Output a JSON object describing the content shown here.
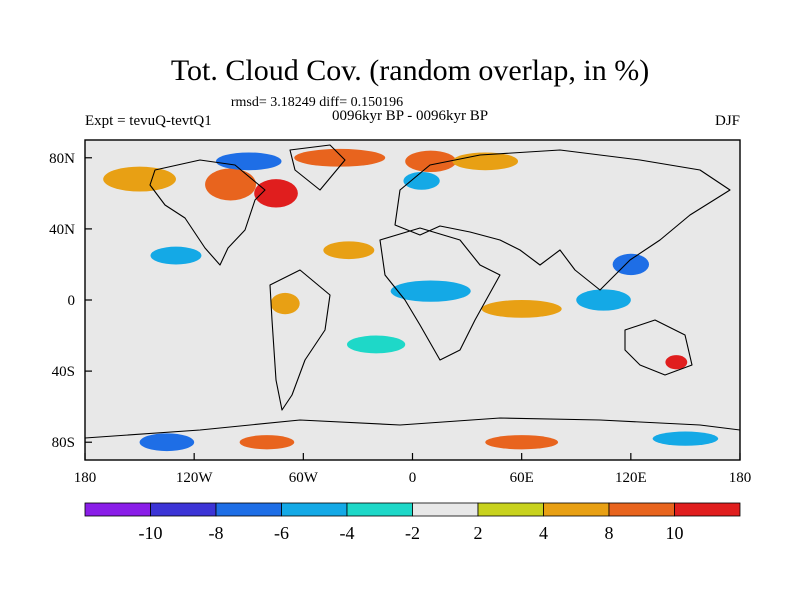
{
  "chart_data": {
    "type": "heatmap",
    "title": "Tot. Cloud Cov. (random overlap, in %)",
    "stats_label": "rmsd= 3.18249 diff= 0.150196",
    "experiment_label": "Expt = tevuQ-tevtQ1",
    "period_label": "0096kyr BP - 0096kyr BP",
    "season_label": "DJF",
    "units": "%",
    "x_range": [
      -180,
      180
    ],
    "y_range": [
      -90,
      90
    ],
    "x_ticks": [
      {
        "value": -180,
        "label": "180"
      },
      {
        "value": -120,
        "label": "120W"
      },
      {
        "value": -60,
        "label": "60W"
      },
      {
        "value": 0,
        "label": "0"
      },
      {
        "value": 60,
        "label": "60E"
      },
      {
        "value": 120,
        "label": "120E"
      },
      {
        "value": 180,
        "label": "180"
      }
    ],
    "y_ticks": [
      {
        "value": 80,
        "label": "80N"
      },
      {
        "value": 40,
        "label": "40N"
      },
      {
        "value": 0,
        "label": "0"
      },
      {
        "value": -40,
        "label": "40S"
      },
      {
        "value": -80,
        "label": "80S"
      }
    ],
    "levels": [
      -10,
      -8,
      -6,
      -4,
      -2,
      2,
      4,
      8,
      10
    ],
    "level_labels": [
      "-10",
      "-8",
      "-6",
      "-4",
      "-2",
      "2",
      "4",
      "8",
      "10"
    ],
    "palette": [
      "#8a1ee8",
      "#3c34d6",
      "#1e6ee6",
      "#14a9e6",
      "#1ed8c8",
      "#e8e8e8",
      "#c8d21e",
      "#e8a014",
      "#e8641e",
      "#e01e1e"
    ],
    "anomaly_regions": [
      {
        "lon": -100,
        "lat": 65,
        "rlon": 14,
        "rlat": 9,
        "value": 9
      },
      {
        "lon": -75,
        "lat": 60,
        "rlon": 12,
        "rlat": 8,
        "value": 11
      },
      {
        "lon": -150,
        "lat": 68,
        "rlon": 20,
        "rlat": 7,
        "value": 6
      },
      {
        "lon": -90,
        "lat": 78,
        "rlon": 18,
        "rlat": 5,
        "value": -7
      },
      {
        "lon": -40,
        "lat": 80,
        "rlon": 25,
        "rlat": 5,
        "value": 9
      },
      {
        "lon": 10,
        "lat": 78,
        "rlon": 14,
        "rlat": 6,
        "value": 9
      },
      {
        "lon": 40,
        "lat": 78,
        "rlon": 18,
        "rlat": 5,
        "value": 7
      },
      {
        "lon": 5,
        "lat": 67,
        "rlon": 10,
        "rlat": 5,
        "value": -6
      },
      {
        "lon": -35,
        "lat": 28,
        "rlon": 14,
        "rlat": 5,
        "value": 5
      },
      {
        "lon": -130,
        "lat": 25,
        "rlon": 14,
        "rlat": 5,
        "value": -5
      },
      {
        "lon": 10,
        "lat": 5,
        "rlon": 22,
        "rlat": 6,
        "value": -6
      },
      {
        "lon": 60,
        "lat": -5,
        "rlon": 22,
        "rlat": 5,
        "value": 6
      },
      {
        "lon": 105,
        "lat": 0,
        "rlon": 15,
        "rlat": 6,
        "value": -6
      },
      {
        "lon": 120,
        "lat": 20,
        "rlon": 10,
        "rlat": 6,
        "value": -7
      },
      {
        "lon": -70,
        "lat": -2,
        "rlon": 8,
        "rlat": 6,
        "value": 6
      },
      {
        "lon": -20,
        "lat": -25,
        "rlon": 16,
        "rlat": 5,
        "value": -4
      },
      {
        "lon": 145,
        "lat": -35,
        "rlon": 6,
        "rlat": 4,
        "value": 10
      },
      {
        "lon": -135,
        "lat": -80,
        "rlon": 15,
        "rlat": 5,
        "value": -8
      },
      {
        "lon": -80,
        "lat": -80,
        "rlon": 15,
        "rlat": 4,
        "value": 9
      },
      {
        "lon": 60,
        "lat": -80,
        "rlon": 20,
        "rlat": 4,
        "value": 9
      },
      {
        "lon": 150,
        "lat": -78,
        "rlon": 18,
        "rlat": 4,
        "value": -5
      }
    ]
  }
}
